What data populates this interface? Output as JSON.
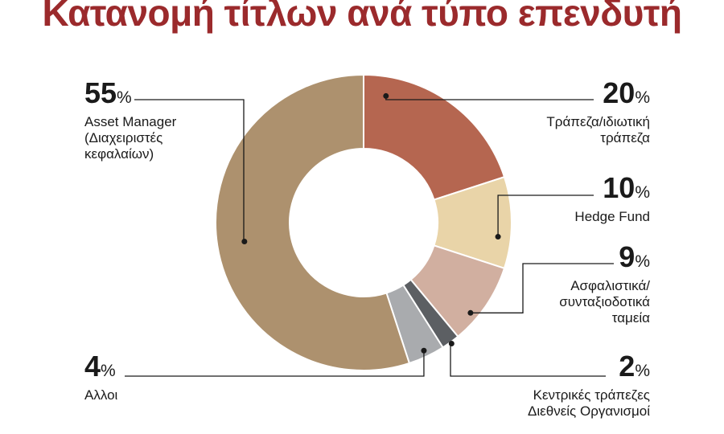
{
  "title": "Κατανομή τίτλων ανά τύπο επενδυτή",
  "chart_data": {
    "type": "pie",
    "title": "Κατανομή τίτλων ανά τύπο επενδυτή",
    "unit": "%",
    "legend": "none",
    "slices": [
      {
        "key": "bank",
        "value": 20,
        "label_lines": [
          "Τράπεζα/ιδιωτική",
          "τράπεζα"
        ],
        "color": "#b56650"
      },
      {
        "key": "hedge",
        "value": 10,
        "label_lines": [
          "Hedge Fund"
        ],
        "color": "#e9d4a8"
      },
      {
        "key": "insurance",
        "value": 9,
        "label_lines": [
          "Ασφαλιστικά/",
          "συνταξιοδοτικά",
          "ταμεία"
        ],
        "color": "#d1afa0"
      },
      {
        "key": "central",
        "value": 2,
        "label_lines": [
          "Κεντρικές τράπεζες",
          "Διεθνείς Οργανισμοί"
        ],
        "color": "#5c5f63"
      },
      {
        "key": "other",
        "value": 4,
        "label_lines": [
          "Αλλοι"
        ],
        "color": "#a9abae"
      },
      {
        "key": "asset",
        "value": 55,
        "label_lines": [
          "Asset Manager",
          "(Διαχειριστές",
          "κεφαλαίων)"
        ],
        "color": "#ad916e"
      }
    ]
  }
}
